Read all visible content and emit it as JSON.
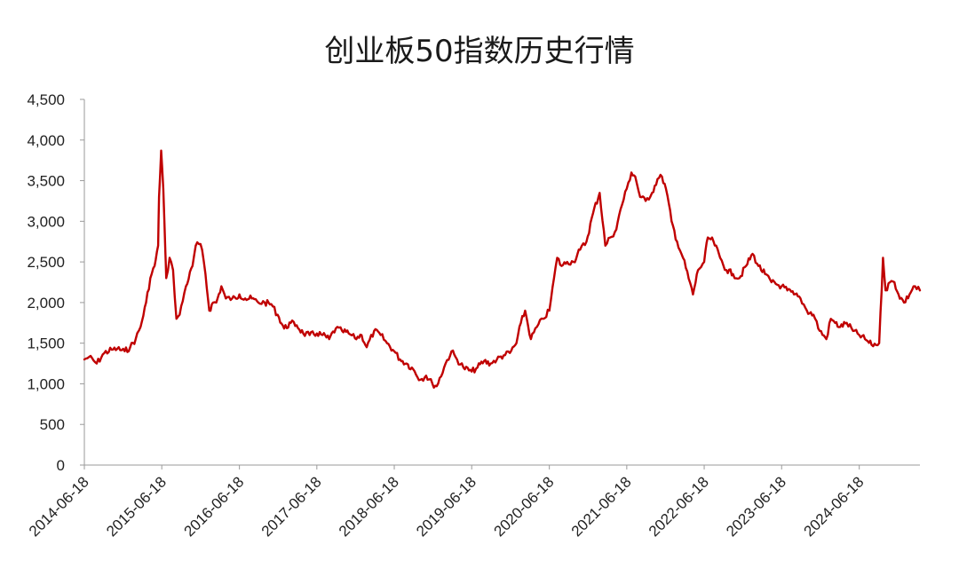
{
  "chart_data": {
    "type": "line",
    "title": "创业板50指数历史行情",
    "xlabel": "",
    "ylabel": "",
    "ylim": [
      0,
      4500
    ],
    "yticks": [
      0,
      500,
      1000,
      1500,
      2000,
      2500,
      3000,
      3500,
      4000,
      4500
    ],
    "ytick_labels": [
      "0",
      "500",
      "1,000",
      "1,500",
      "2,000",
      "2,500",
      "3,000",
      "3,500",
      "4,000",
      "4,500"
    ],
    "xlim": [
      "2014-06-18",
      "2025-03-31"
    ],
    "xticks": [
      "2014-06-18",
      "2015-06-18",
      "2016-06-18",
      "2017-06-18",
      "2018-06-18",
      "2019-06-18",
      "2020-06-18",
      "2021-06-18",
      "2022-06-18",
      "2023-06-18",
      "2024-06-18"
    ],
    "grid": false,
    "legend": "none",
    "series": [
      {
        "color": "#c00000",
        "x": [
          "2014-06-18",
          "2014-07-10",
          "2014-08-15",
          "2014-09-20",
          "2014-10-25",
          "2014-11-20",
          "2014-12-25",
          "2015-01-20",
          "2015-02-15",
          "2015-03-10",
          "2015-04-05",
          "2015-04-25",
          "2015-05-15",
          "2015-06-01",
          "2015-06-05",
          "2015-06-15",
          "2015-06-25",
          "2015-07-05",
          "2015-07-09",
          "2015-07-25",
          "2015-08-10",
          "2015-08-26",
          "2015-09-10",
          "2015-10-10",
          "2015-11-10",
          "2015-11-25",
          "2015-12-10",
          "2015-12-25",
          "2016-01-10",
          "2016-01-28",
          "2016-02-15",
          "2016-03-01",
          "2016-03-25",
          "2016-04-15",
          "2016-05-15",
          "2016-06-01",
          "2016-06-18",
          "2016-07-15",
          "2016-08-15",
          "2016-09-15",
          "2016-10-15",
          "2016-11-15",
          "2016-12-15",
          "2017-01-15",
          "2017-02-15",
          "2017-03-15",
          "2017-04-15",
          "2017-05-15",
          "2017-06-18",
          "2017-07-15",
          "2017-08-15",
          "2017-09-15",
          "2017-10-15",
          "2017-11-15",
          "2017-12-15",
          "2018-01-15",
          "2018-02-08",
          "2018-03-15",
          "2018-04-15",
          "2018-05-15",
          "2018-06-18",
          "2018-07-15",
          "2018-08-15",
          "2018-09-15",
          "2018-10-19",
          "2018-11-15",
          "2018-12-15",
          "2019-01-04",
          "2019-02-15",
          "2019-03-15",
          "2019-04-10",
          "2019-05-10",
          "2019-06-18",
          "2019-07-15",
          "2019-08-15",
          "2019-09-15",
          "2019-10-15",
          "2019-11-15",
          "2019-12-15",
          "2020-01-15",
          "2020-02-05",
          "2020-02-25",
          "2020-03-23",
          "2020-04-20",
          "2020-05-20",
          "2020-06-18",
          "2020-07-10",
          "2020-07-25",
          "2020-08-15",
          "2020-09-10",
          "2020-10-10",
          "2020-11-10",
          "2020-12-10",
          "2021-01-10",
          "2021-02-10",
          "2021-03-09",
          "2021-04-01",
          "2021-04-30",
          "2021-05-20",
          "2021-06-18",
          "2021-07-10",
          "2021-07-28",
          "2021-08-20",
          "2021-09-15",
          "2021-10-15",
          "2021-11-10",
          "2021-12-01",
          "2021-12-20",
          "2022-01-15",
          "2022-02-10",
          "2022-03-10",
          "2022-04-26",
          "2022-05-20",
          "2022-06-18",
          "2022-07-05",
          "2022-08-01",
          "2022-09-01",
          "2022-10-01",
          "2022-11-01",
          "2022-12-01",
          "2023-01-01",
          "2023-02-01",
          "2023-03-01",
          "2023-04-01",
          "2023-05-01",
          "2023-06-18",
          "2023-07-15",
          "2023-08-15",
          "2023-09-15",
          "2023-10-15",
          "2023-11-15",
          "2023-12-15",
          "2024-01-15",
          "2024-02-05",
          "2024-02-25",
          "2024-03-20",
          "2024-04-20",
          "2024-05-20",
          "2024-06-18",
          "2024-07-15",
          "2024-08-15",
          "2024-09-20",
          "2024-10-08",
          "2024-10-20",
          "2024-11-10",
          "2024-12-01",
          "2024-12-20",
          "2025-01-15",
          "2025-02-10",
          "2025-03-01",
          "2025-03-31"
        ],
        "values": [
          1300,
          1330,
          1250,
          1380,
          1420,
          1430,
          1400,
          1450,
          1550,
          1700,
          2000,
          2300,
          2450,
          2700,
          3300,
          3870,
          3400,
          2600,
          2300,
          2550,
          2400,
          1800,
          1850,
          2200,
          2450,
          2700,
          2720,
          2650,
          2350,
          1900,
          2000,
          2000,
          2200,
          2050,
          2050,
          2050,
          2100,
          2050,
          2050,
          2000,
          2000,
          1980,
          1850,
          1680,
          1750,
          1720,
          1620,
          1600,
          1620,
          1600,
          1550,
          1680,
          1650,
          1620,
          1560,
          1600,
          1450,
          1650,
          1600,
          1500,
          1400,
          1300,
          1250,
          1180,
          1050,
          1100,
          1000,
          970,
          1250,
          1400,
          1300,
          1200,
          1150,
          1200,
          1280,
          1250,
          1300,
          1350,
          1380,
          1500,
          1750,
          1900,
          1550,
          1700,
          1800,
          1900,
          2300,
          2550,
          2450,
          2500,
          2500,
          2650,
          2750,
          3100,
          3350,
          2700,
          2800,
          2900,
          3150,
          3400,
          3600,
          3550,
          3300,
          3250,
          3350,
          3520,
          3550,
          3400,
          3000,
          2750,
          2550,
          2100,
          2400,
          2500,
          2800,
          2750,
          2550,
          2400,
          2350,
          2300,
          2450,
          2600,
          2450,
          2350,
          2250,
          2200,
          2150,
          2100,
          2050,
          1900,
          1850,
          1650,
          1550,
          1800,
          1750,
          1700,
          1750,
          1650,
          1600,
          1550,
          1480,
          1500,
          2550,
          2150,
          2250,
          2250,
          2100,
          2000,
          2100,
          2200,
          2150
        ]
      }
    ]
  }
}
